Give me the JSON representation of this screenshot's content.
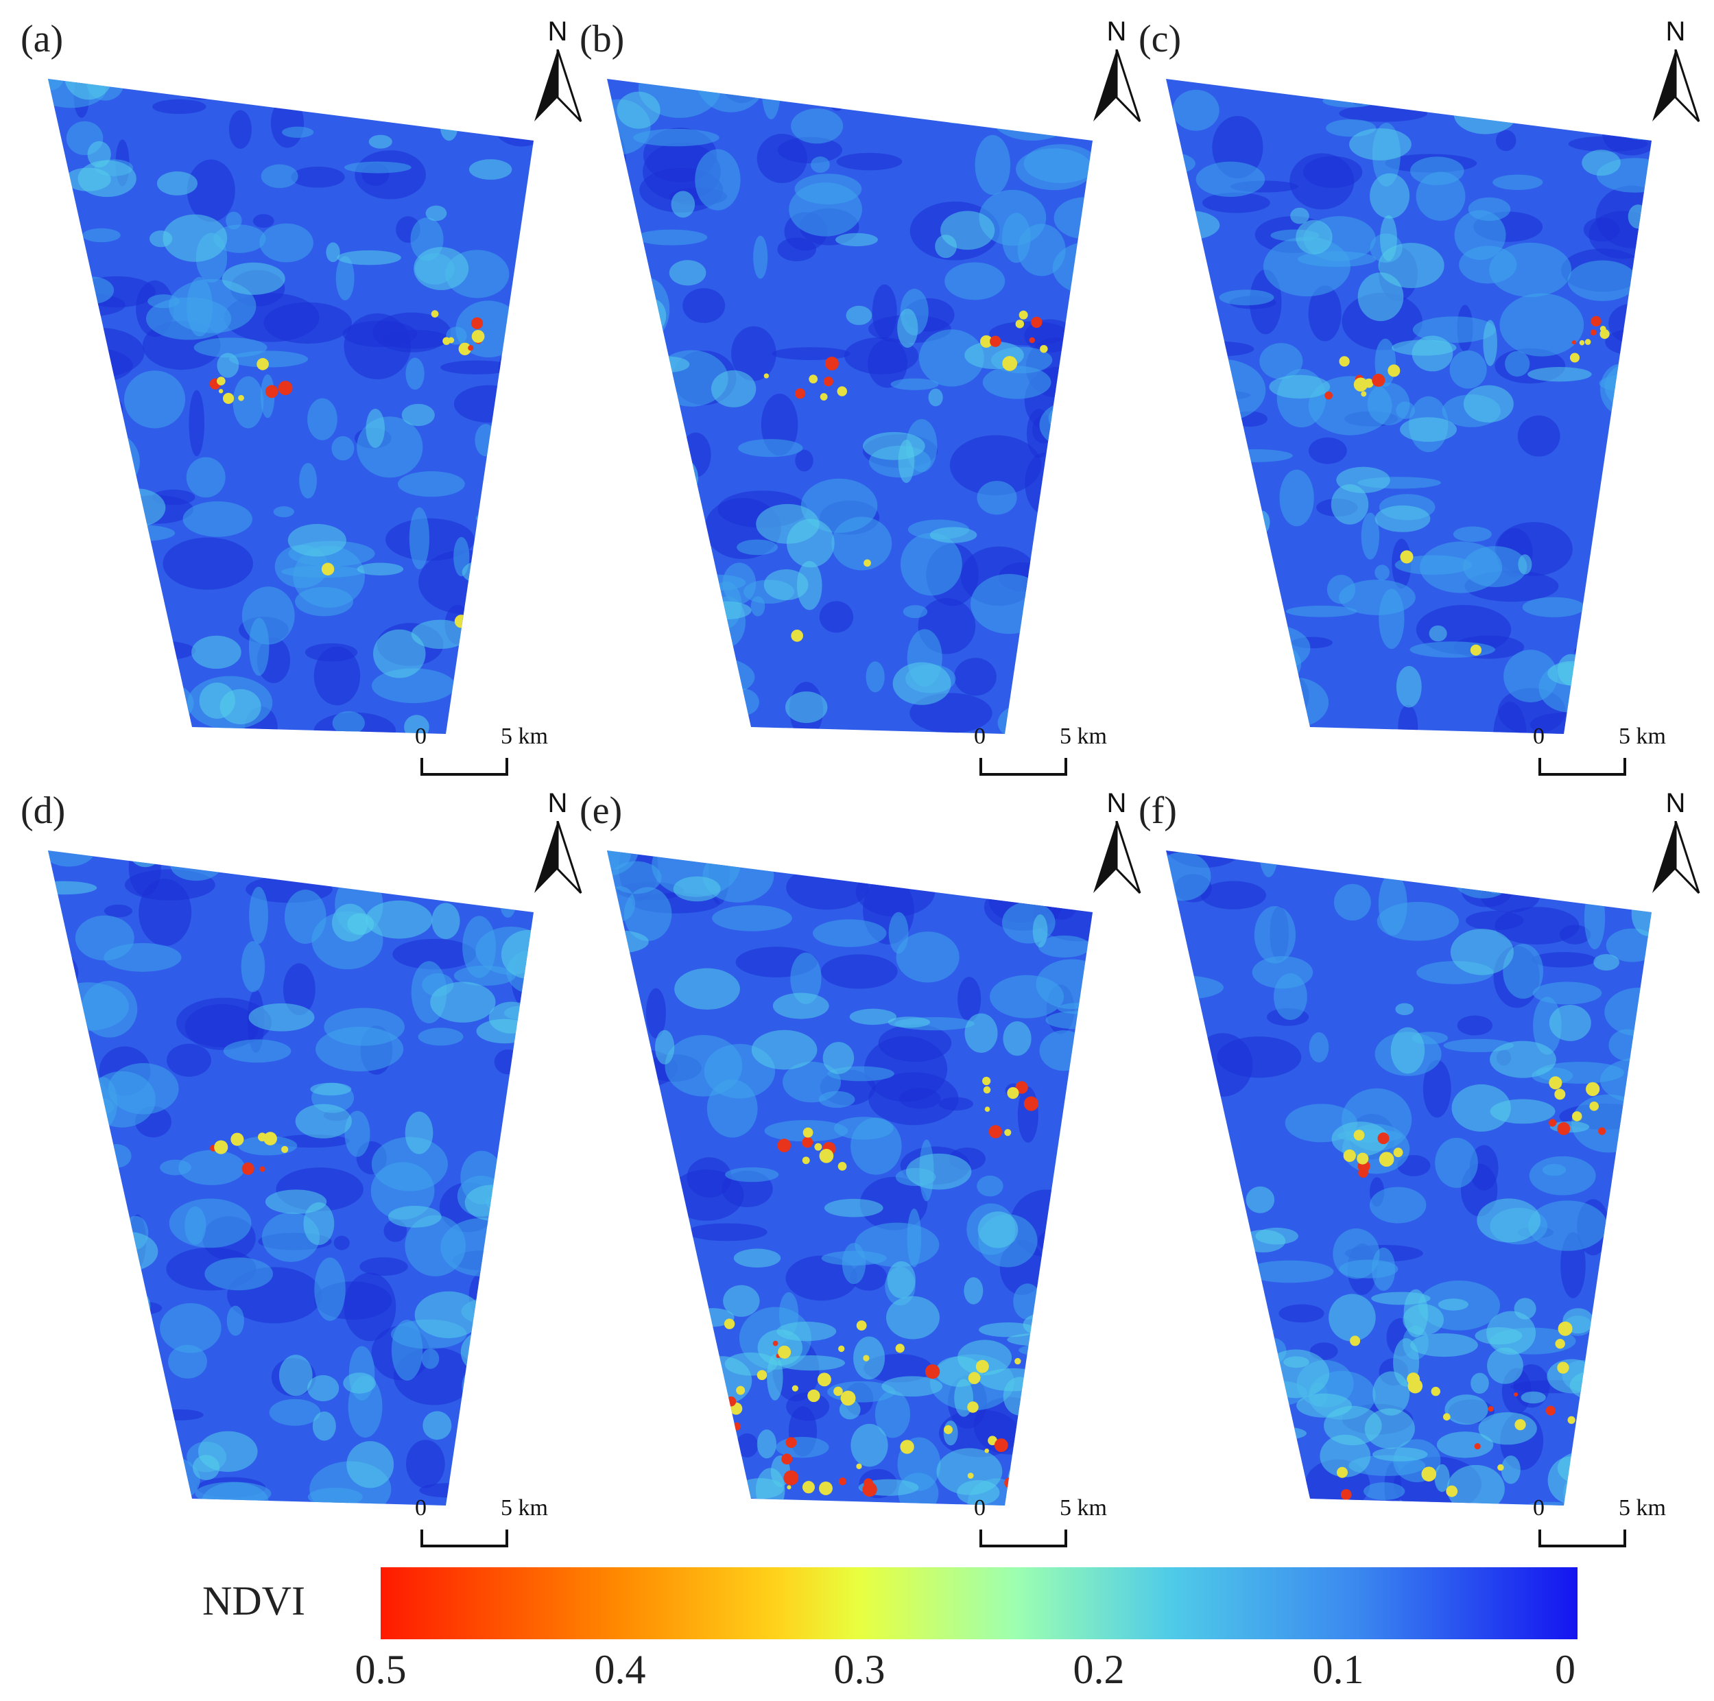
{
  "panels": [
    {
      "label": "(a)",
      "north": "N",
      "scale_zero": "0",
      "scale_end": "5 km",
      "variant": 0
    },
    {
      "label": "(b)",
      "north": "N",
      "scale_zero": "0",
      "scale_end": "5 km",
      "variant": 1
    },
    {
      "label": "(c)",
      "north": "N",
      "scale_zero": "0",
      "scale_end": "5 km",
      "variant": 2
    },
    {
      "label": "(d)",
      "north": "N",
      "scale_zero": "0",
      "scale_end": "5 km",
      "variant": 3
    },
    {
      "label": "(e)",
      "north": "N",
      "scale_zero": "0",
      "scale_end": "5 km",
      "variant": 4
    },
    {
      "label": "(f)",
      "north": "N",
      "scale_zero": "0",
      "scale_end": "5 km",
      "variant": 5
    }
  ],
  "legend": {
    "title": "NDVI",
    "ticks": [
      "0.5",
      "0.4",
      "0.3",
      "0.2",
      "0.1",
      "0"
    ],
    "colors": [
      "#ff1a00",
      "#ff8a00",
      "#ffd21a",
      "#e8ff40",
      "#9dffb0",
      "#4fcbe8",
      "#3a86f0",
      "#1414f0"
    ]
  },
  "map_colors": {
    "base": "#2f5ce8",
    "dark": "#1c2fd6",
    "light": "#3fa6ec",
    "cyan": "#56d0ea",
    "yellow": "#e6e040",
    "red": "#e8341a"
  }
}
